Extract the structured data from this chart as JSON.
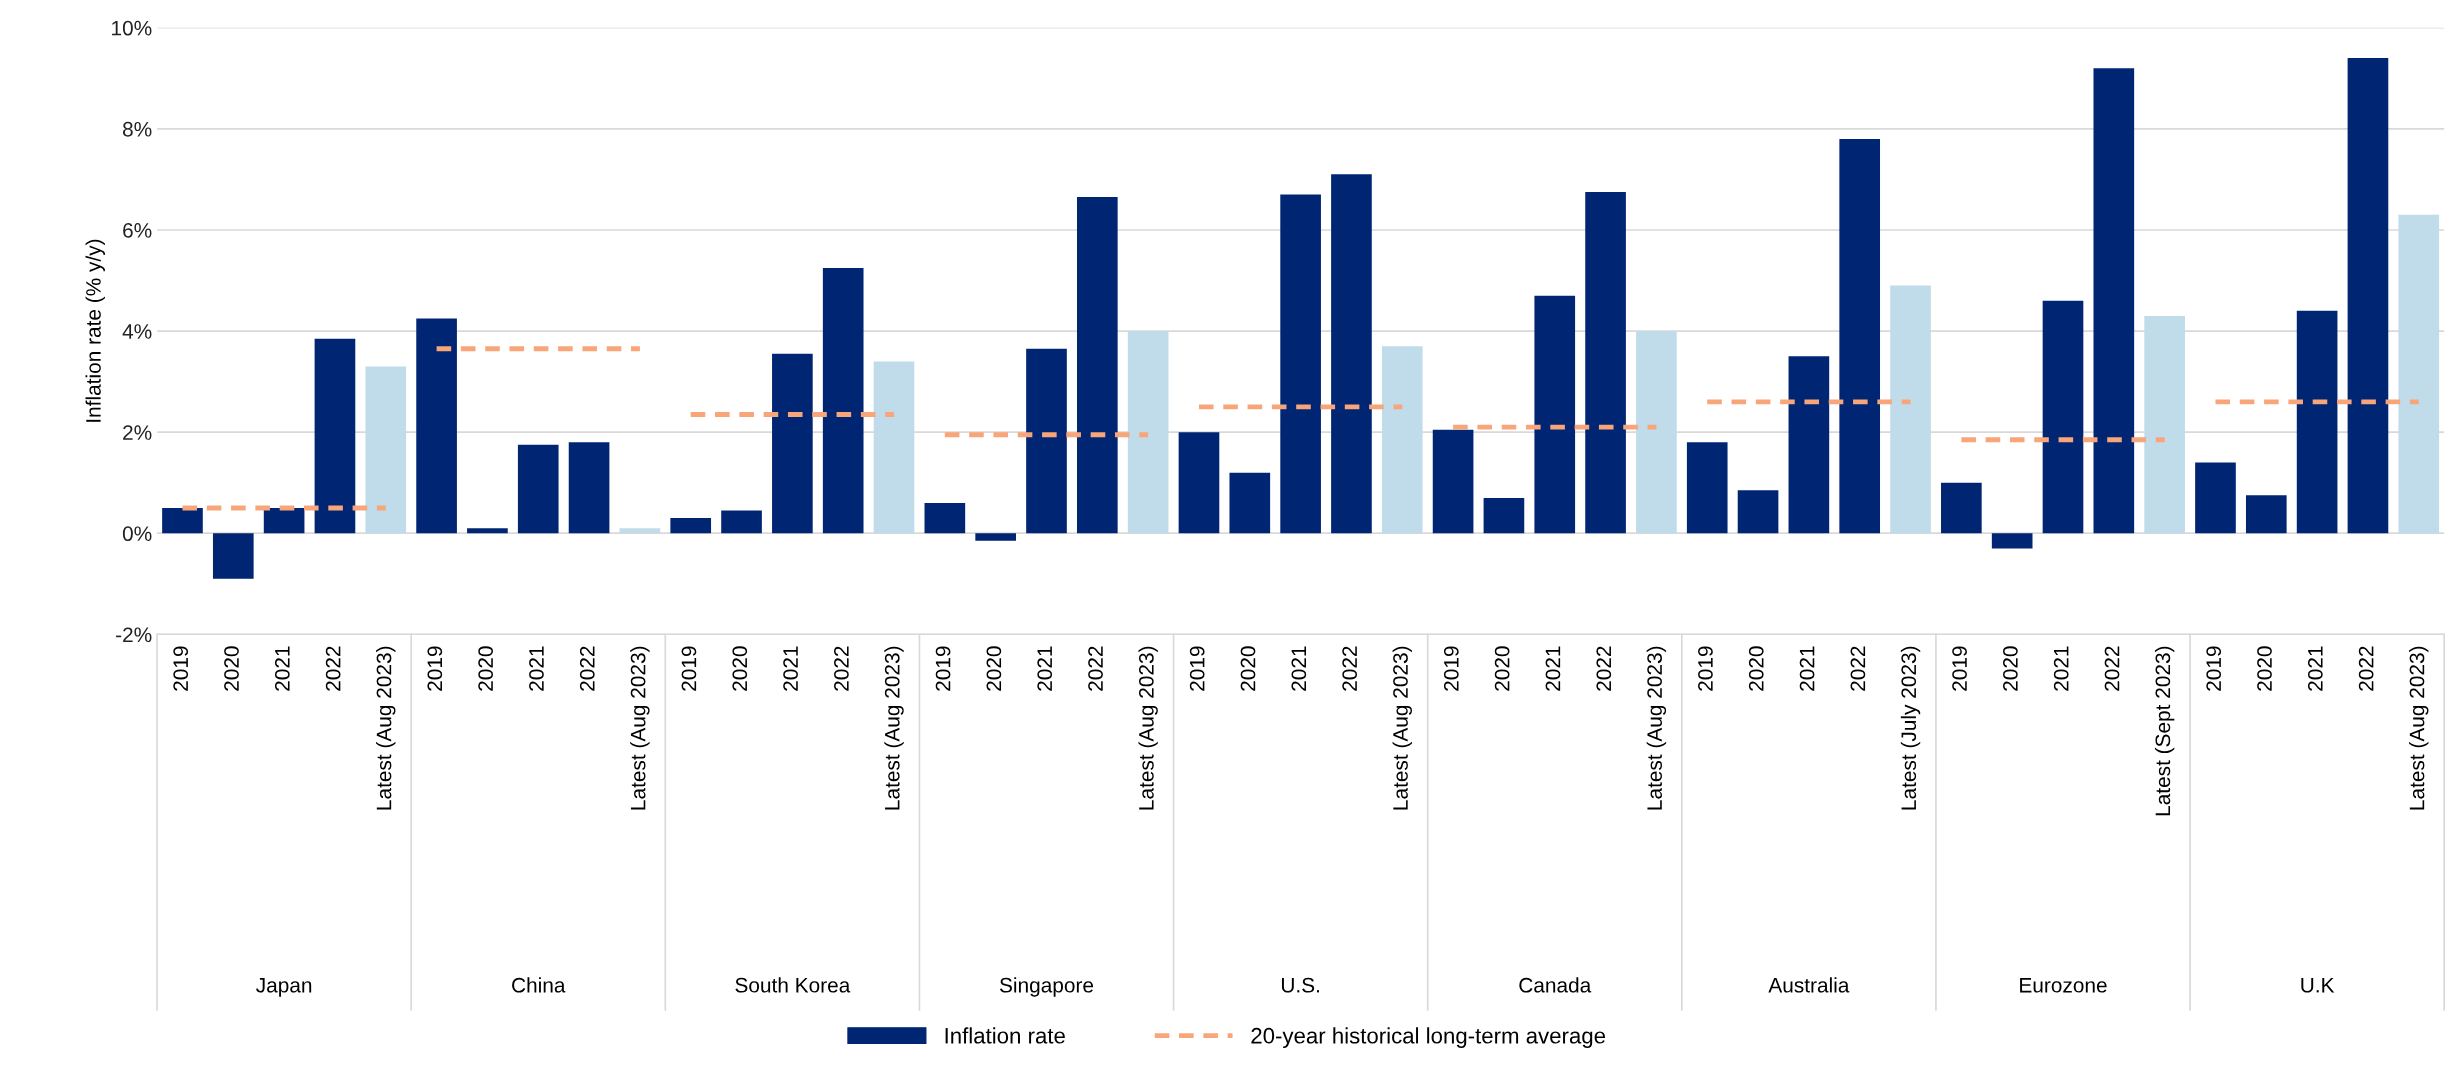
{
  "chart_data": {
    "type": "bar",
    "ylabel": "Inflation rate (% y/y)",
    "categories": [
      "2019",
      "2020",
      "2021",
      "2022",
      "Latest (Aug 2023)",
      "2019",
      "2020",
      "2021",
      "2022",
      "Latest (Aug 2023)",
      "2019",
      "2020",
      "2021",
      "2022",
      "Latest (Aug 2023)",
      "2019",
      "2020",
      "2021",
      "2022",
      "Latest (Aug 2023)",
      "2019",
      "2020",
      "2021",
      "2022",
      "Latest (Aug 2023)",
      "2019",
      "2020",
      "2021",
      "2022",
      "Latest (Aug 2023)",
      "2019",
      "2020",
      "2021",
      "2022",
      "Latest (July 2023)",
      "2019",
      "2020",
      "2021",
      "2022",
      "Latest (Sept 2023)",
      "2019",
      "2020",
      "2021",
      "2022",
      "Latest (Aug 2023)"
    ],
    "annotations": [
      "Japan",
      "China",
      "South Korea",
      "Singapore",
      "U.S.",
      "Canada",
      "Australia",
      "Eurozone",
      "U.K"
    ],
    "series": [
      {
        "name": "Inflation rate",
        "color": "#002673",
        "colors": [
          "#002673",
          "#002673",
          "#002673",
          "#002673",
          "#c0dcea",
          "#002673",
          "#002673",
          "#002673",
          "#002673",
          "#c0dcea",
          "#002673",
          "#002673",
          "#002673",
          "#002673",
          "#c0dcea",
          "#002673",
          "#002673",
          "#002673",
          "#002673",
          "#c0dcea",
          "#002673",
          "#002673",
          "#002673",
          "#002673",
          "#c0dcea",
          "#002673",
          "#002673",
          "#002673",
          "#002673",
          "#c0dcea",
          "#002673",
          "#002673",
          "#002673",
          "#002673",
          "#c0dcea",
          "#002673",
          "#002673",
          "#002673",
          "#002673",
          "#c0dcea",
          "#002673",
          "#002673",
          "#002673",
          "#002673",
          "#c0dcea"
        ],
        "values": [
          0.5,
          -0.9,
          0.5,
          3.85,
          3.3,
          4.25,
          0.1,
          1.75,
          1.8,
          0.1,
          0.3,
          0.45,
          3.55,
          5.25,
          3.4,
          0.6,
          -0.15,
          3.65,
          6.65,
          4.0,
          2.0,
          1.2,
          6.7,
          7.1,
          3.7,
          2.05,
          0.7,
          4.7,
          6.75,
          4.0,
          1.8,
          0.85,
          3.5,
          7.8,
          4.9,
          1.0,
          -0.3,
          4.6,
          9.2,
          4.3,
          1.4,
          0.75,
          4.4,
          9.4,
          6.3
        ]
      },
      {
        "name": "20-year historical long-term average",
        "type": "line",
        "color": "#f8a57a",
        "line_style": "dashed",
        "values": [
          0.5,
          0.5,
          0.5,
          0.5,
          0.5,
          3.65,
          3.65,
          3.65,
          3.65,
          3.65,
          2.35,
          2.35,
          2.35,
          2.35,
          2.35,
          1.95,
          1.95,
          1.95,
          1.95,
          1.95,
          2.5,
          2.5,
          2.5,
          2.5,
          2.5,
          2.1,
          2.1,
          2.1,
          2.1,
          2.1,
          2.6,
          2.6,
          2.6,
          2.6,
          2.6,
          1.85,
          1.85,
          1.85,
          1.85,
          1.85,
          2.6,
          2.6,
          2.6,
          2.6,
          2.6
        ]
      }
    ],
    "ylim": [
      -2,
      10
    ],
    "yticks": [
      {
        "value": -2,
        "label": "-2%"
      },
      {
        "value": 0,
        "label": "0%"
      },
      {
        "value": 2,
        "label": "2%"
      },
      {
        "value": 4,
        "label": "4%"
      },
      {
        "value": 6,
        "label": "6%"
      },
      {
        "value": 8,
        "label": "8%"
      },
      {
        "value": 10,
        "label": "10%"
      }
    ],
    "grid": "y",
    "legend": "bottom"
  }
}
